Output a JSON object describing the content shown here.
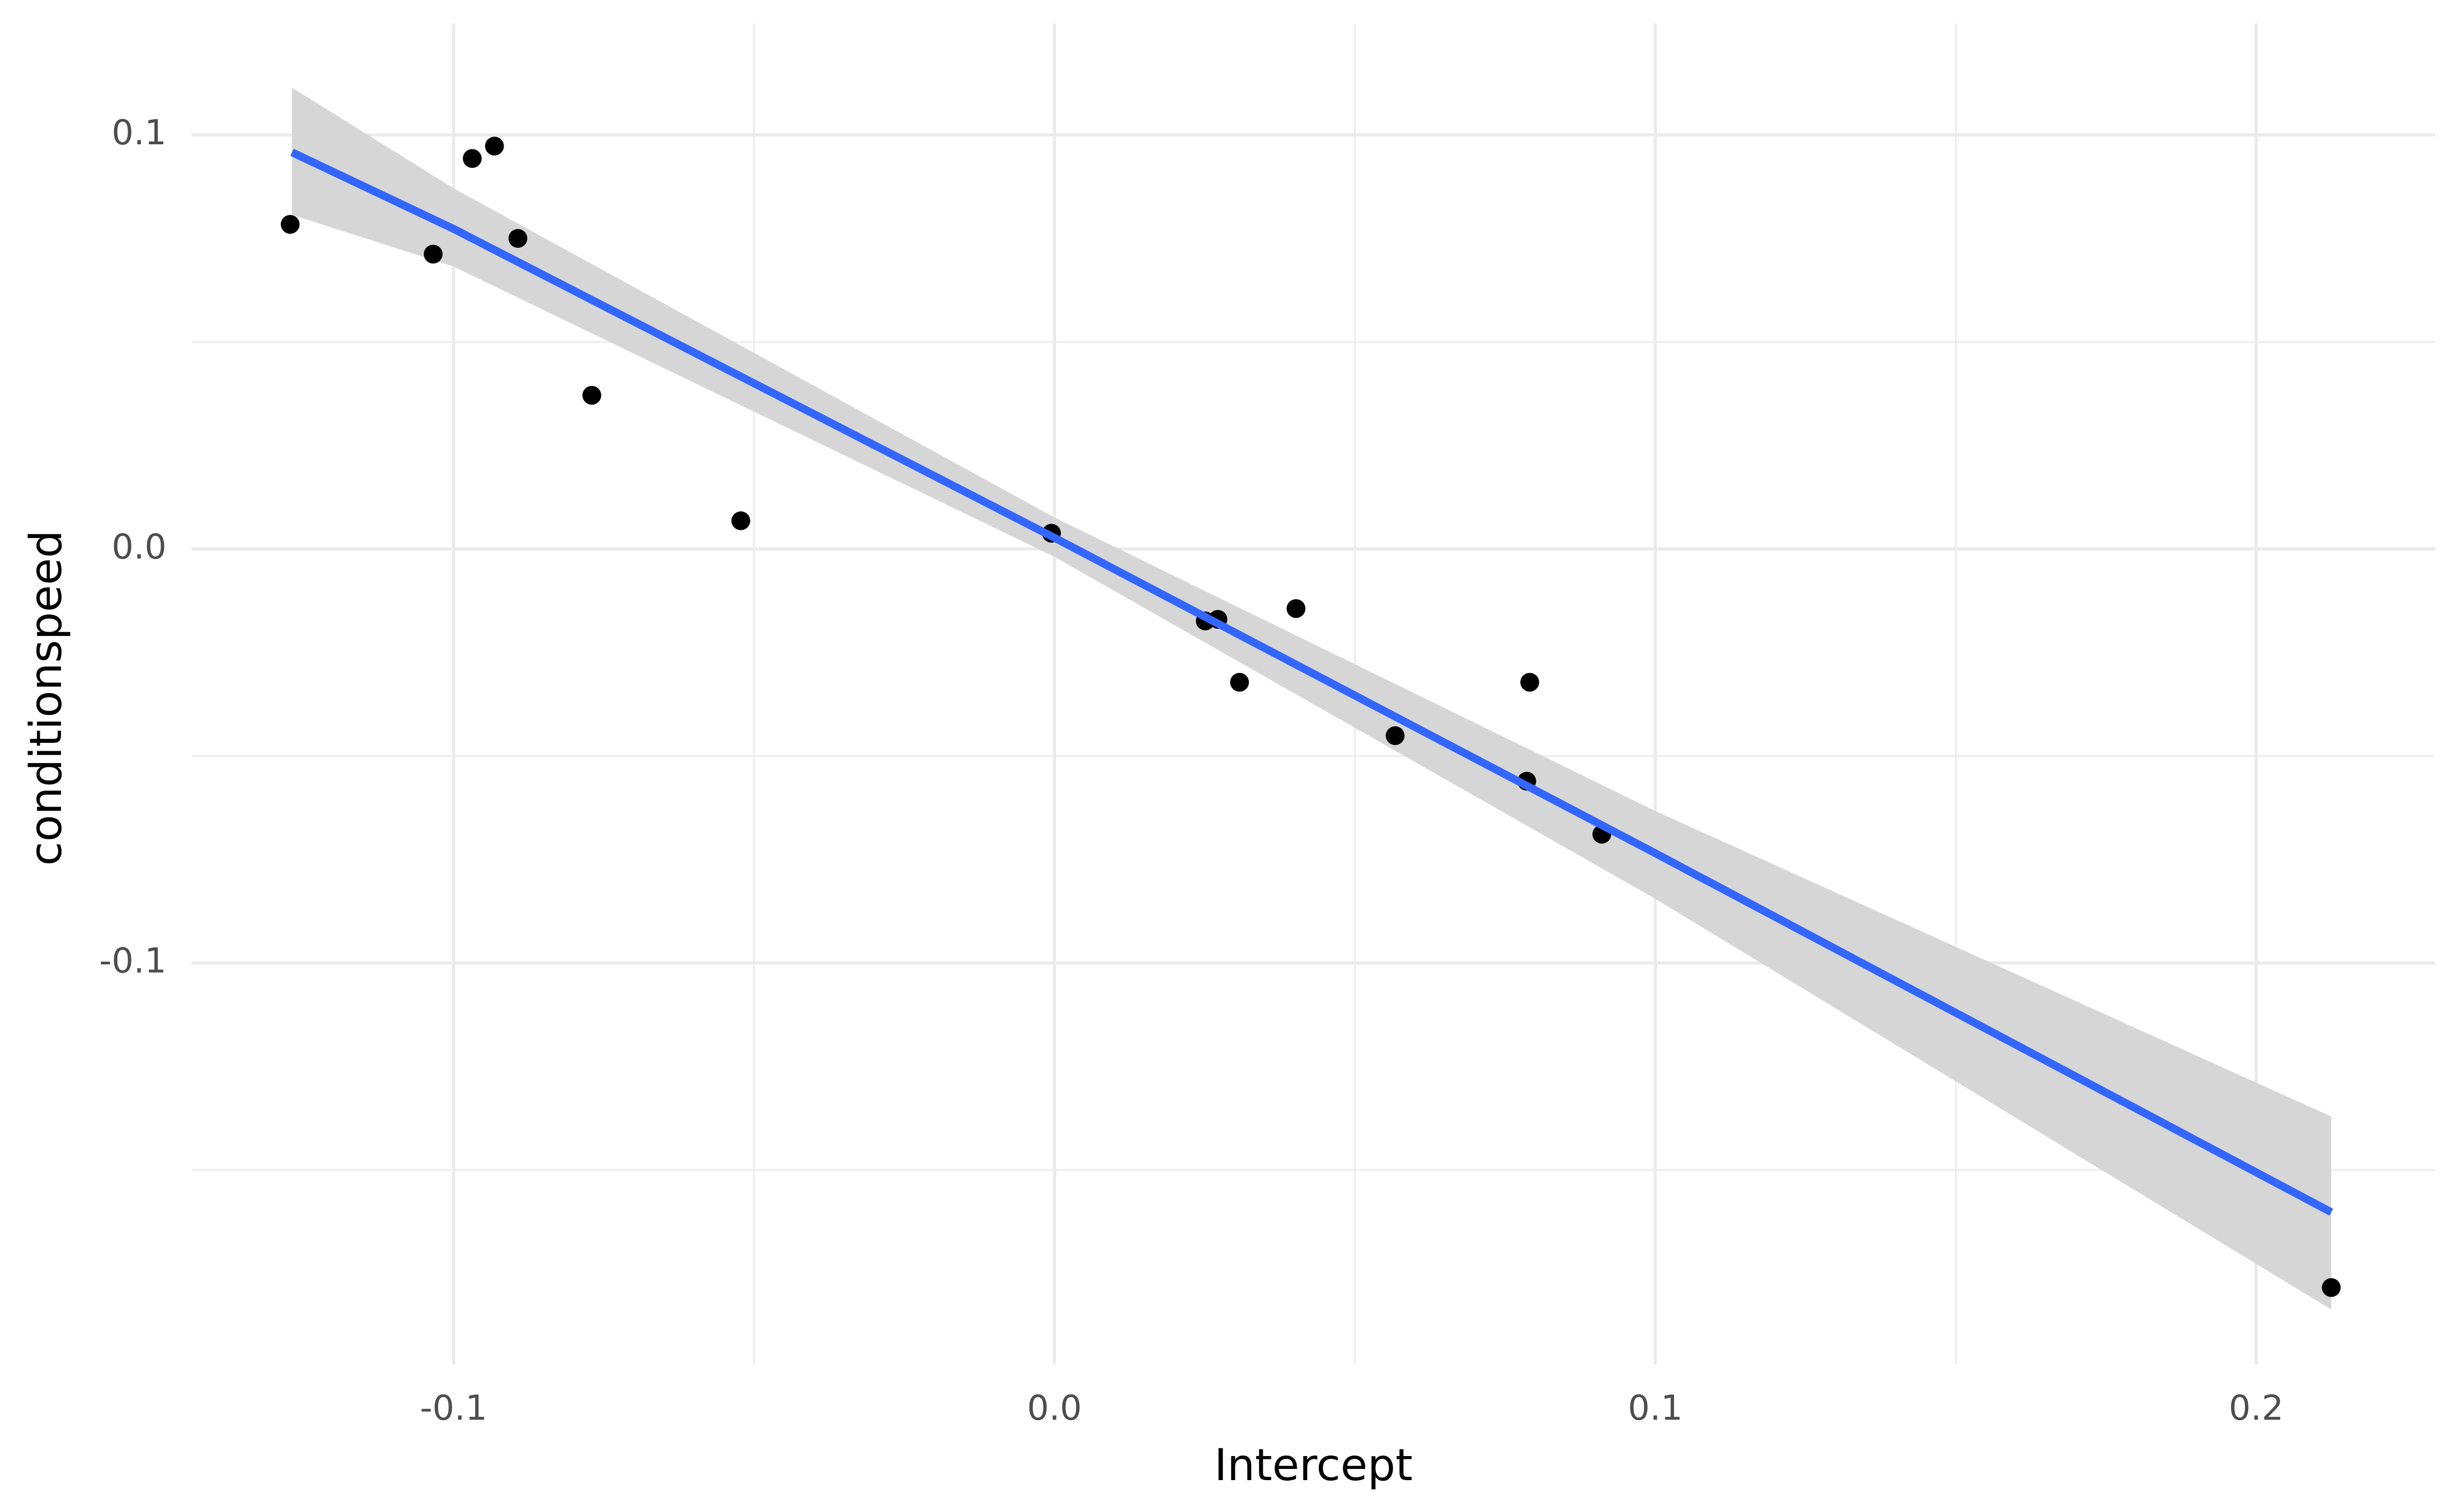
{
  "chart_data": {
    "type": "scatter",
    "x_label": "Intercept",
    "y_label": "conditionspeed",
    "x": [
      -0.1272,
      -0.1034,
      -0.0969,
      -0.0932,
      -0.0893,
      -0.077,
      -0.0522,
      -0.0005,
      0.0251,
      0.0272,
      0.0308,
      0.0402,
      0.0567,
      0.0786,
      0.0791,
      0.0911,
      0.2125
    ],
    "values": [
      0.0784,
      0.0712,
      0.0943,
      0.0973,
      0.075,
      0.0371,
      0.0068,
      0.0038,
      -0.0174,
      -0.017,
      -0.0322,
      -0.0144,
      -0.0451,
      -0.0561,
      -0.0322,
      -0.0689,
      -0.1784
    ],
    "color": "#000000",
    "fit": {
      "x": [
        -0.1269,
        -0.1,
        0,
        0.1,
        0.2125
      ],
      "y": [
        0.0958,
        0.0773,
        0.0027,
        -0.0735,
        -0.1602
      ],
      "lower": [
        0.0807,
        0.0682,
        -0.0019,
        -0.0845,
        -0.1837
      ],
      "upper": [
        0.1114,
        0.0871,
        0.0076,
        -0.0633,
        -0.1371
      ],
      "color": "#3366ff",
      "band_color": "#d6d6d6"
    },
    "xlim": [
      -0.1436,
      0.2298
    ],
    "ylim": [
      -0.197,
      0.1269
    ],
    "xticks": [
      -0.1,
      {
        "value": 0,
        "label": "0.0"
      },
      0.1,
      0.2
    ],
    "yticks": [
      -0.1,
      {
        "value": 0,
        "label": "0.0"
      },
      0.1
    ],
    "xminorticks": [
      -0.05,
      0.05,
      0.15
    ],
    "yminorticks": [
      -0.15,
      -0.05,
      0.05
    ],
    "grid": true
  }
}
